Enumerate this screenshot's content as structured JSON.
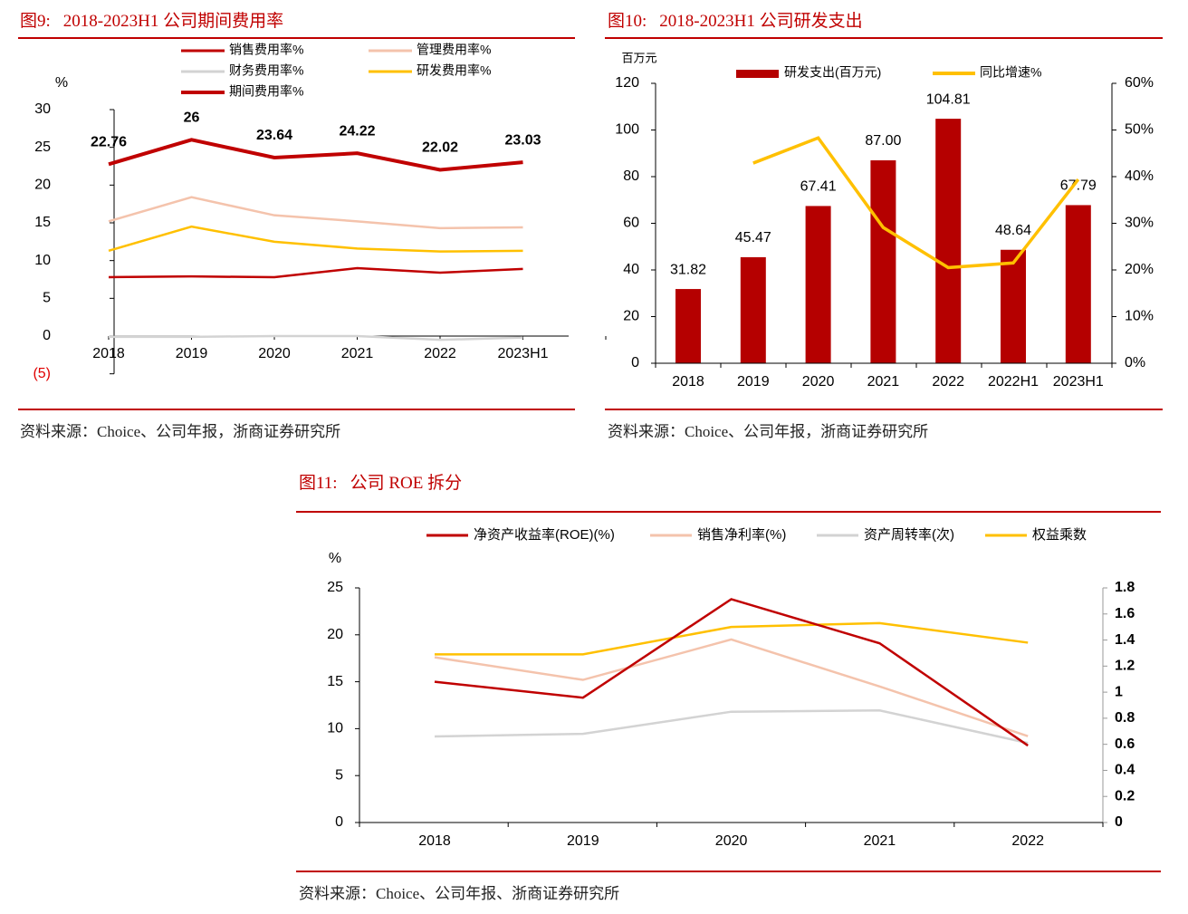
{
  "figures": [
    {
      "number": "图9:",
      "title": "2018-2023H1 公司期间费用率",
      "source": "资料来源：Choice、公司年报，浙商证券研究所"
    },
    {
      "number": "图10:",
      "title": "2018-2023H1 公司研发支出",
      "source": "资料来源：Choice、公司年报，浙商证券研究所"
    },
    {
      "number": "图11:",
      "title": "公司 ROE 拆分",
      "source": "资料来源：Choice、公司年报、浙商证券研究所"
    }
  ],
  "chart_data": [
    {
      "type": "line",
      "title": "2018-2023H1 公司期间费用率",
      "ylabel": "%",
      "ylim": [
        -5,
        30
      ],
      "yticks": [
        "30",
        "25",
        "20",
        "15",
        "10",
        "5",
        "0",
        "(5)"
      ],
      "ytick_values": [
        30,
        25,
        20,
        15,
        10,
        5,
        0,
        -5
      ],
      "categories": [
        "2018",
        "2019",
        "2020",
        "2021",
        "2022",
        "2023H1"
      ],
      "legend_placement": "top",
      "series": [
        {
          "name": "销售费用率%",
          "color": "#C00000",
          "values": [
            7.8,
            7.9,
            7.8,
            9.0,
            8.4,
            8.9
          ]
        },
        {
          "name": "管理费用率%",
          "color": "#F4C3AC",
          "values": [
            15.2,
            18.4,
            16.0,
            15.2,
            14.3,
            14.4
          ]
        },
        {
          "name": "财务费用率%",
          "color": "#D3D3D3",
          "values": [
            -0.1,
            -0.1,
            0.0,
            0.0,
            -0.5,
            -0.2
          ]
        },
        {
          "name": "研发费用率%",
          "color": "#FFC000",
          "values": [
            11.3,
            14.5,
            12.5,
            11.6,
            11.2,
            11.3
          ]
        },
        {
          "name": "期间费用率%",
          "color": "#C00000",
          "values": [
            22.76,
            26,
            23.64,
            24.22,
            22.02,
            23.03
          ],
          "labels": [
            "22.76",
            "26",
            "23.64",
            "24.22",
            "22.02",
            "23.03"
          ]
        }
      ]
    },
    {
      "type": "bar",
      "title": "2018-2023H1 公司研发支出",
      "ylabel": "百万元",
      "ylim": [
        0,
        120
      ],
      "yticks": [
        "120",
        "100",
        "80",
        "60",
        "40",
        "20",
        "0"
      ],
      "ytick_values": [
        120,
        100,
        80,
        60,
        40,
        20,
        0
      ],
      "y2lim": [
        0,
        60
      ],
      "y2ticks": [
        "60%",
        "50%",
        "40%",
        "30%",
        "20%",
        "10%",
        "0%"
      ],
      "y2tick_values": [
        60,
        50,
        40,
        30,
        20,
        10,
        0
      ],
      "categories": [
        "2018",
        "2019",
        "2020",
        "2021",
        "2022",
        "2022H1",
        "2023H1"
      ],
      "legend_placement": "top",
      "series": [
        {
          "name": "研发支出(百万元)",
          "type": "bar",
          "color": "#B50000",
          "values": [
            31.82,
            45.47,
            67.41,
            87.0,
            104.81,
            48.64,
            67.79
          ],
          "labels": [
            "31.82",
            "45.47",
            "67.41",
            "87.00",
            "104.81",
            "48.64",
            "67.79"
          ]
        },
        {
          "name": "同比增速%",
          "type": "line",
          "axis": "right",
          "color": "#FFC000",
          "values": [
            null,
            42.9,
            48.3,
            29.1,
            20.5,
            21.5,
            39.4
          ]
        }
      ]
    },
    {
      "type": "line",
      "title": "公司 ROE 拆分",
      "ylabel": "%",
      "ylim": [
        0,
        25
      ],
      "yticks": [
        "25",
        "20",
        "15",
        "10",
        "5",
        "0"
      ],
      "ytick_values": [
        25,
        20,
        15,
        10,
        5,
        0
      ],
      "y2lim": [
        0,
        1.8
      ],
      "y2ticks": [
        "1.8",
        "1.6",
        "1.4",
        "1.2",
        "1",
        "0.8",
        "0.6",
        "0.4",
        "0.2",
        "0"
      ],
      "y2tick_values": [
        1.8,
        1.6,
        1.4,
        1.2,
        1,
        0.8,
        0.6,
        0.4,
        0.2,
        0
      ],
      "categories": [
        "2018",
        "2019",
        "2020",
        "2021",
        "2022"
      ],
      "legend_placement": "top",
      "series": [
        {
          "name": "净资产收益率(ROE)(%)",
          "axis": "left",
          "color": "#C00000",
          "values": [
            15.0,
            13.3,
            23.8,
            19.1,
            8.2
          ]
        },
        {
          "name": "销售净利率(%)",
          "axis": "left",
          "color": "#F4C3AC",
          "values": [
            17.6,
            15.2,
            19.5,
            14.5,
            9.2
          ]
        },
        {
          "name": "资产周转率(次)",
          "axis": "right",
          "color": "#D3D3D3",
          "values": [
            0.66,
            0.68,
            0.85,
            0.86,
            0.61
          ]
        },
        {
          "name": "权益乘数",
          "axis": "right",
          "color": "#FFC000",
          "values": [
            1.29,
            1.29,
            1.5,
            1.53,
            1.38
          ]
        }
      ]
    }
  ]
}
